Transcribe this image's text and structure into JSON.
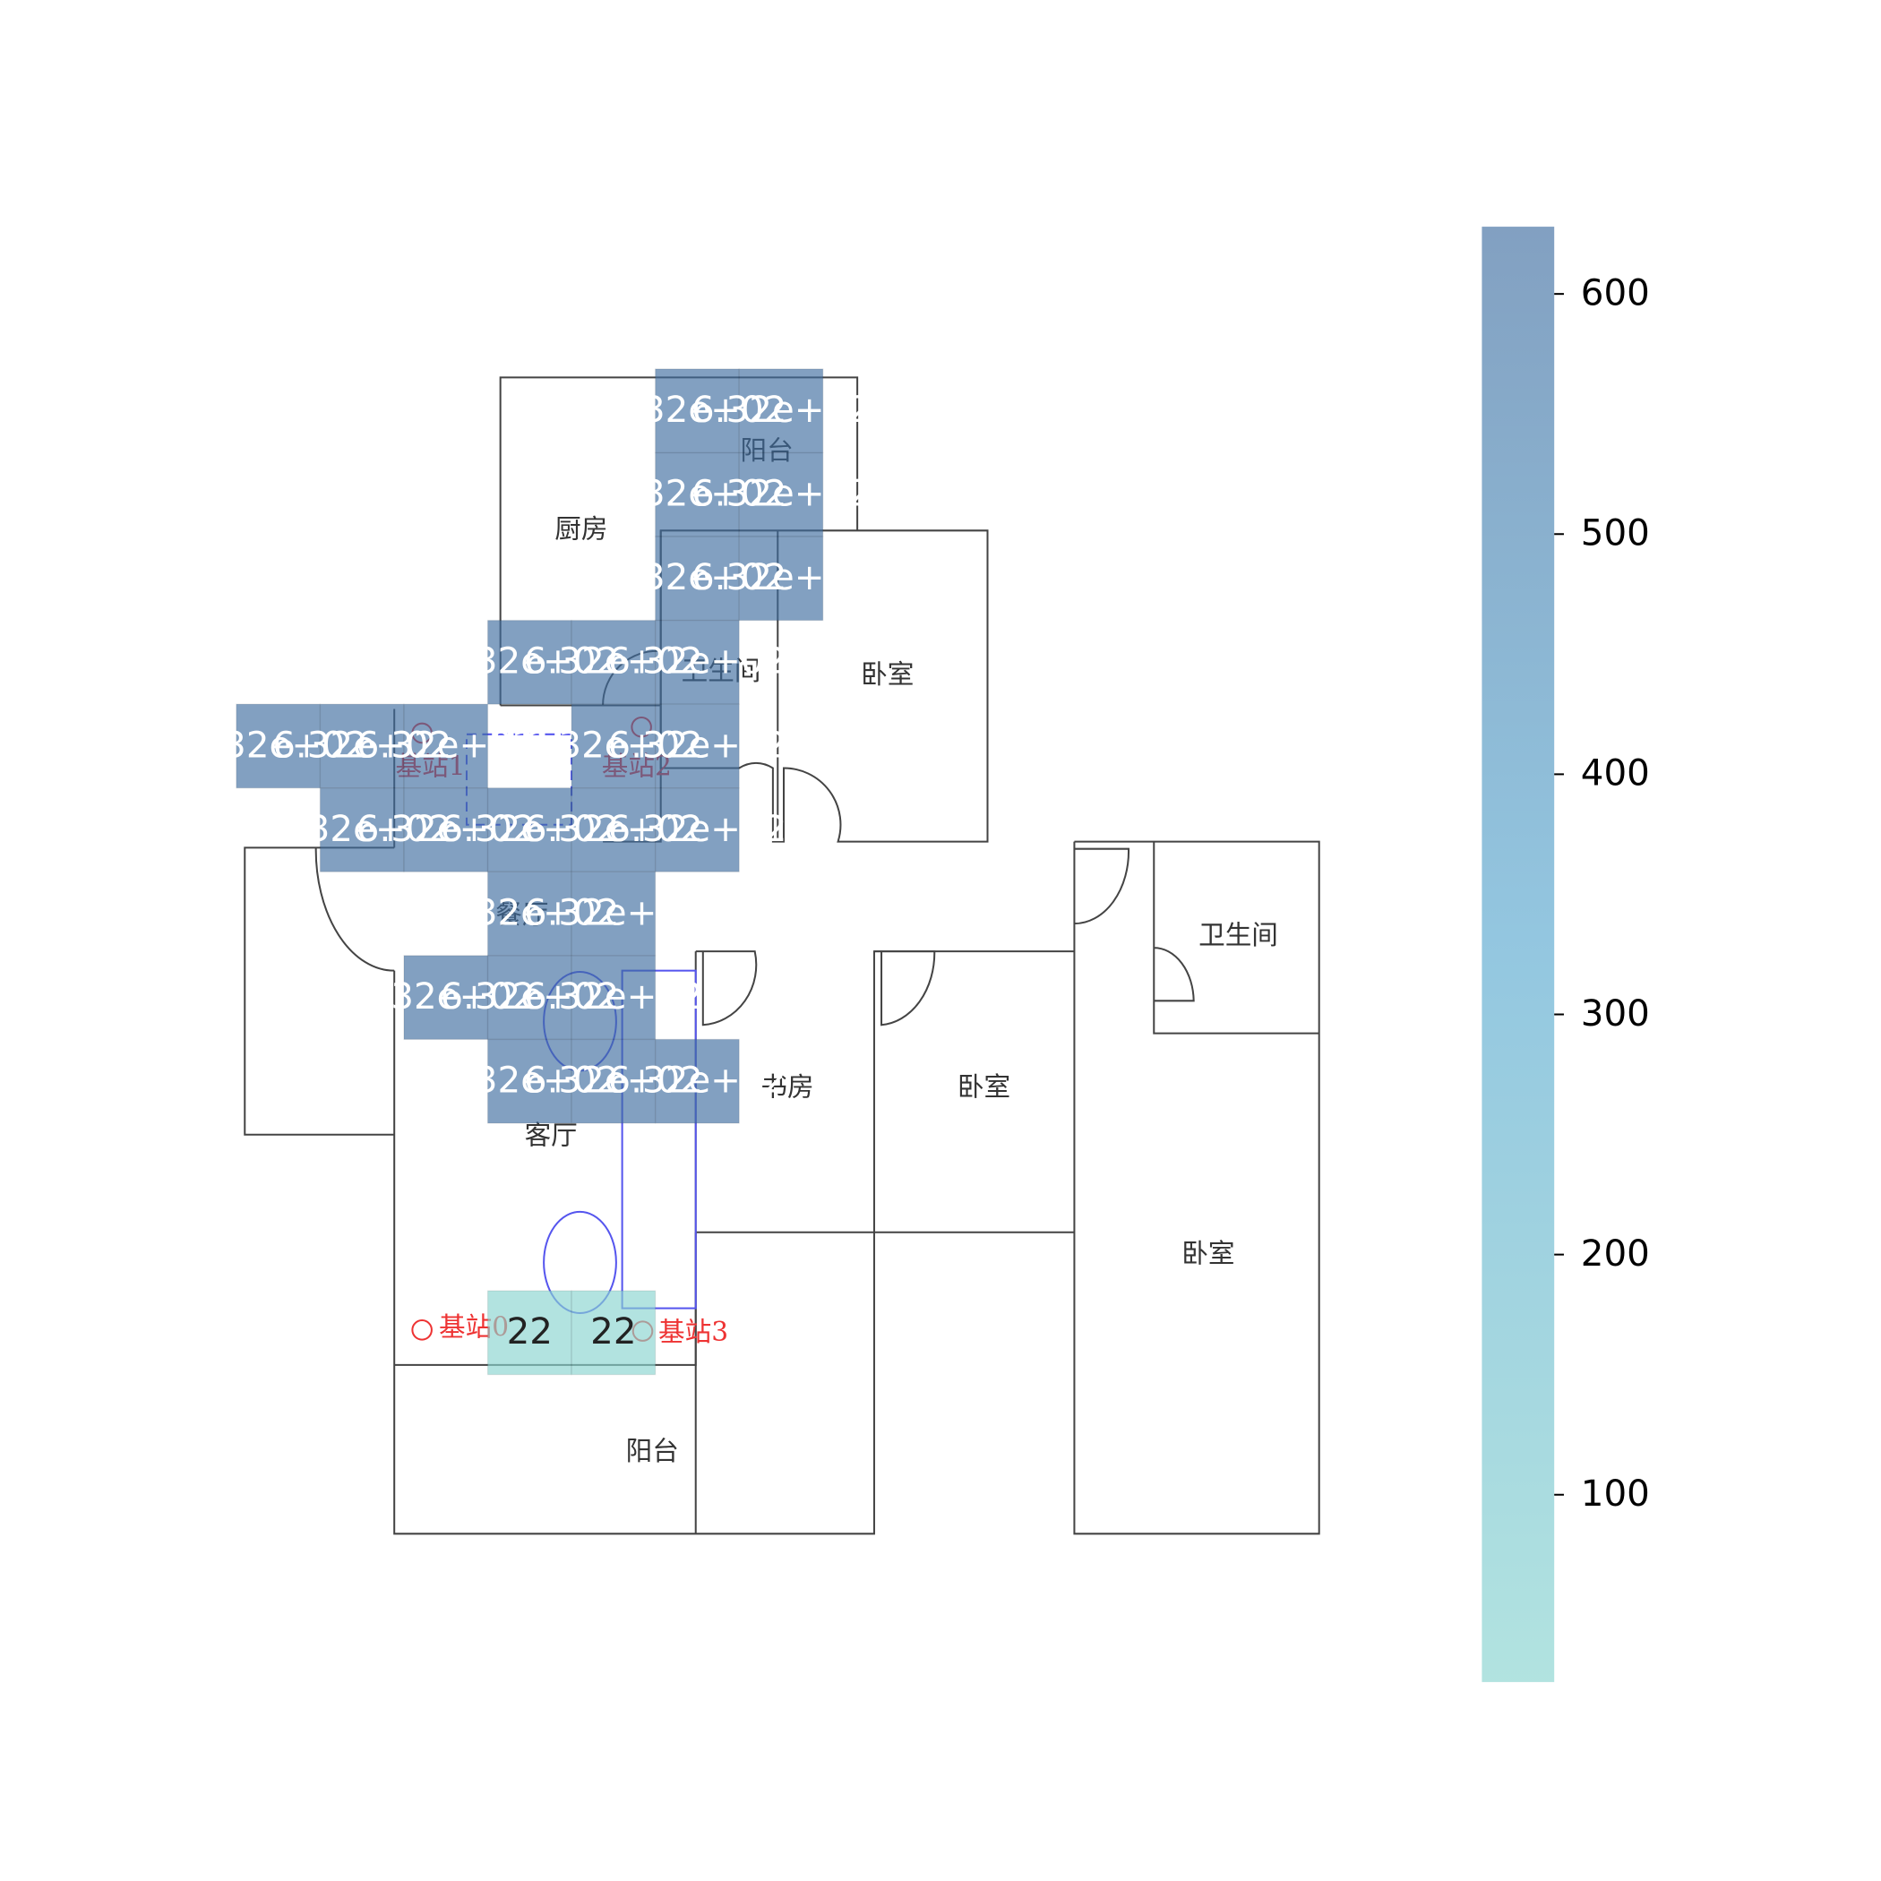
{
  "chart_data": {
    "type": "heatmap",
    "cells": [
      {
        "row": 0,
        "col": 5,
        "value": 632,
        "label": "6.32e+02"
      },
      {
        "row": 0,
        "col": 6,
        "value": 632,
        "label": "6.32e+02"
      },
      {
        "row": 1,
        "col": 5,
        "value": 632,
        "label": "6.32e+02"
      },
      {
        "row": 1,
        "col": 6,
        "value": 632,
        "label": "6.32e+02"
      },
      {
        "row": 2,
        "col": 5,
        "value": 632,
        "label": "6.32e+02"
      },
      {
        "row": 2,
        "col": 6,
        "value": 632,
        "label": "6.32e+02"
      },
      {
        "row": 3,
        "col": 3,
        "value": 632,
        "label": "6.32e+02"
      },
      {
        "row": 3,
        "col": 4,
        "value": 632,
        "label": "6.32e+02"
      },
      {
        "row": 3,
        "col": 5,
        "value": 632,
        "label": "6.32e+02"
      },
      {
        "row": 4,
        "col": 0,
        "value": 632,
        "label": "6.32e+02"
      },
      {
        "row": 4,
        "col": 1,
        "value": 632,
        "label": "6.32e+02"
      },
      {
        "row": 4,
        "col": 2,
        "value": 632,
        "label": "6.32e+02"
      },
      {
        "row": 4,
        "col": 4,
        "value": 632,
        "label": "6.32e+02"
      },
      {
        "row": 4,
        "col": 5,
        "value": 632,
        "label": "6.32e+02"
      },
      {
        "row": 5,
        "col": 1,
        "value": 632,
        "label": "6.32e+02"
      },
      {
        "row": 5,
        "col": 2,
        "value": 632,
        "label": "6.32e+02"
      },
      {
        "row": 5,
        "col": 3,
        "value": 632,
        "label": "6.32e+02"
      },
      {
        "row": 5,
        "col": 4,
        "value": 632,
        "label": "6.32e+02"
      },
      {
        "row": 5,
        "col": 5,
        "value": 632,
        "label": "6.32e+02"
      },
      {
        "row": 6,
        "col": 3,
        "value": 632,
        "label": "6.32e+02"
      },
      {
        "row": 6,
        "col": 4,
        "value": 632,
        "label": "6.32e+02"
      },
      {
        "row": 7,
        "col": 2,
        "value": 632,
        "label": "6.32e+02"
      },
      {
        "row": 7,
        "col": 3,
        "value": 632,
        "label": "6.32e+02"
      },
      {
        "row": 7,
        "col": 4,
        "value": 632,
        "label": "6.32e+02"
      },
      {
        "row": 8,
        "col": 3,
        "value": 632,
        "label": "6.32e+02"
      },
      {
        "row": 8,
        "col": 4,
        "value": 632,
        "label": "6.32e+02"
      },
      {
        "row": 8,
        "col": 5,
        "value": 632,
        "label": "6.32e+02"
      },
      {
        "row": 11,
        "col": 3,
        "value": 22
      },
      {
        "row": 11,
        "col": 4,
        "value": 22
      }
    ],
    "colors": [
      "#88d4cf",
      "#5aa9d0",
      "#3f6da0"
    ],
    "clim": [
      22,
      628
    ],
    "cticks": [
      100,
      200,
      300,
      400,
      500,
      600
    ]
  },
  "floorplan": {
    "rooms": [
      "厨房",
      "阳台",
      "卫生间",
      "卧室",
      "餐厅",
      "客厅",
      "书房",
      "卧室",
      "卫生间",
      "卧室",
      "阳台"
    ],
    "stations": [
      "基站1",
      "基站2",
      "基站0",
      "基站3"
    ]
  }
}
